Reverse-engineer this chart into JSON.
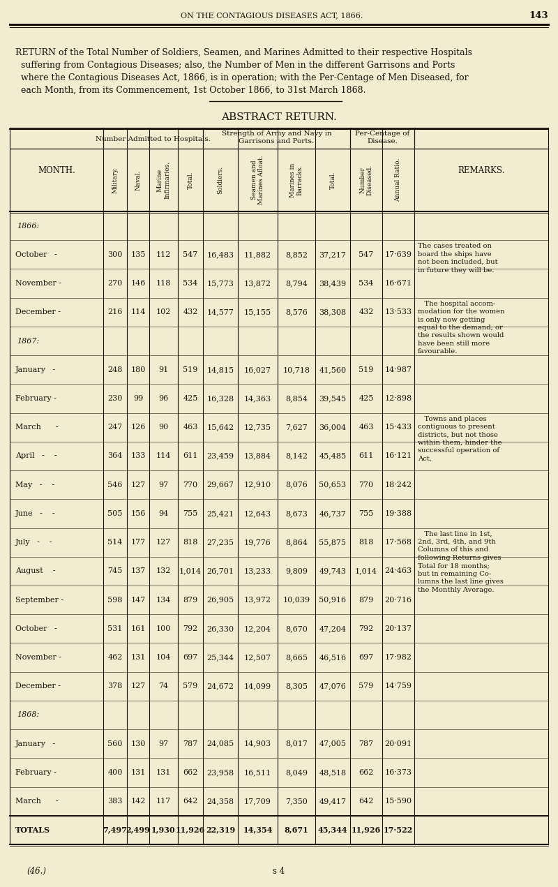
{
  "page_header": "ON THE CONTAGIOUS DISEASES ACT, 1866.",
  "page_number": "143",
  "intro_lines": [
    [
      "RETURN",
      " of the Total Number of ",
      "Soldiers",
      ", ",
      "Seamen",
      ", and ",
      "Marines",
      " Admitted to their respective ",
      "Hospitals"
    ],
    [
      "  suffering from ",
      "Contagious Diseases",
      "; also, the Number of ",
      "Men",
      " in the different ",
      "Garrisons",
      " and ",
      "Ports"
    ],
    [
      "  where the ",
      "Contagious Diseases Act",
      ", 1866, is in operation; with the Per-Centage of Men Diseased, for"
    ],
    [
      "  each Month, from its Commencement, 1st October 1866, to 31st March 1868."
    ]
  ],
  "intro_text_plain": [
    "RETURN of the Total Number of Soldiers, Seamen, and Marines Admitted to their respective Hospitals",
    "  suffering from Contagious Diseases; also, the Number of Men in the different Garrisons and Ports",
    "  where the Contagious Diseases Act, 1866, is in operation; with the Per-Centage of Men Diseased, for",
    "  each Month, from its Commencement, 1st October 1866, to 31st March 1868."
  ],
  "section_title": "ABSTRACT RETURN.",
  "col_group1_header": "Number Admitted to Hospitals.",
  "col_group2_header": "Strength of Army and Navy in\nGarrisons and Ports.",
  "col_group3_header": "Per-Centage of\nDisease.",
  "col_headers_rot": [
    "Military.",
    "Naval.",
    "Marine\nInfirmaries.",
    "Total.",
    "Soldiers.",
    "Seamen and\nMarines Afloat.",
    "Marines in\nBarracks.",
    "Total.",
    "Number\nDiseased.",
    "Annual Ratio."
  ],
  "month_col_header": "MONTH.",
  "remarks_col_header": "REMARKS.",
  "rows": [
    {
      "year_label": "1866:",
      "month": "",
      "mil": "",
      "nav": "",
      "mar": "",
      "tot": "",
      "sol": "",
      "sea": "",
      "bar": "",
      "ttl": "",
      "ndis": "",
      "ratio": ""
    },
    {
      "year_label": "",
      "month": "October   -",
      "mil": "300",
      "nav": "135",
      "mar": "112",
      "tot": "547",
      "sol": "16,483",
      "sea": "11,882",
      "bar": "8,852",
      "ttl": "37,217",
      "ndis": "547",
      "ratio": "17·639"
    },
    {
      "year_label": "",
      "month": "November -",
      "mil": "270",
      "nav": "146",
      "mar": "118",
      "tot": "534",
      "sol": "15,773",
      "sea": "13,872",
      "bar": "8,794",
      "ttl": "38,439",
      "ndis": "534",
      "ratio": "16·671"
    },
    {
      "year_label": "",
      "month": "December -",
      "mil": "216",
      "nav": "114",
      "mar": "102",
      "tot": "432",
      "sol": "14,577",
      "sea": "15,155",
      "bar": "8,576",
      "ttl": "38,308",
      "ndis": "432",
      "ratio": "13·533"
    },
    {
      "year_label": "1867:",
      "month": "",
      "mil": "",
      "nav": "",
      "mar": "",
      "tot": "",
      "sol": "",
      "sea": "",
      "bar": "",
      "ttl": "",
      "ndis": "",
      "ratio": ""
    },
    {
      "year_label": "",
      "month": "January   -",
      "mil": "248",
      "nav": "180",
      "mar": "91",
      "tot": "519",
      "sol": "14,815",
      "sea": "16,027",
      "bar": "10,718",
      "ttl": "41,560",
      "ndis": "519",
      "ratio": "14·987"
    },
    {
      "year_label": "",
      "month": "February -",
      "mil": "230",
      "nav": "99",
      "mar": "96",
      "tot": "425",
      "sol": "16,328",
      "sea": "14,363",
      "bar": "8,854",
      "ttl": "39,545",
      "ndis": "425",
      "ratio": "12·898"
    },
    {
      "year_label": "",
      "month": "March      -",
      "mil": "247",
      "nav": "126",
      "mar": "90",
      "tot": "463",
      "sol": "15,642",
      "sea": "12,735",
      "bar": "7,627",
      "ttl": "36,004",
      "ndis": "463",
      "ratio": "15·433"
    },
    {
      "year_label": "",
      "month": "April   -    -",
      "mil": "364",
      "nav": "133",
      "mar": "114",
      "tot": "611",
      "sol": "23,459",
      "sea": "13,884",
      "bar": "8,142",
      "ttl": "45,485",
      "ndis": "611",
      "ratio": "16·121"
    },
    {
      "year_label": "",
      "month": "May   -    -",
      "mil": "546",
      "nav": "127",
      "mar": "97",
      "tot": "770",
      "sol": "29,667",
      "sea": "12,910",
      "bar": "8,076",
      "ttl": "50,653",
      "ndis": "770",
      "ratio": "18·242"
    },
    {
      "year_label": "",
      "month": "June   -    -",
      "mil": "505",
      "nav": "156",
      "mar": "94",
      "tot": "755",
      "sol": "25,421",
      "sea": "12,643",
      "bar": "8,673",
      "ttl": "46,737",
      "ndis": "755",
      "ratio": "19·388"
    },
    {
      "year_label": "",
      "month": "July   -    -",
      "mil": "514",
      "nav": "177",
      "mar": "127",
      "tot": "818",
      "sol": "27,235",
      "sea": "19,776",
      "bar": "8,864",
      "ttl": "55,875",
      "ndis": "818",
      "ratio": "17·568"
    },
    {
      "year_label": "",
      "month": "August    -",
      "mil": "745",
      "nav": "137",
      "mar": "132",
      "tot": "1,014",
      "sol": "26,701",
      "sea": "13,233",
      "bar": "9,809",
      "ttl": "49,743",
      "ndis": "1,014",
      "ratio": "24·463"
    },
    {
      "year_label": "",
      "month": "September -",
      "mil": "598",
      "nav": "147",
      "mar": "134",
      "tot": "879",
      "sol": "26,905",
      "sea": "13,972",
      "bar": "10,039",
      "ttl": "50,916",
      "ndis": "879",
      "ratio": "20·716"
    },
    {
      "year_label": "",
      "month": "October   -",
      "mil": "531",
      "nav": "161",
      "mar": "100",
      "tot": "792",
      "sol": "26,330",
      "sea": "12,204",
      "bar": "8,670",
      "ttl": "47,204",
      "ndis": "792",
      "ratio": "20·137"
    },
    {
      "year_label": "",
      "month": "November -",
      "mil": "462",
      "nav": "131",
      "mar": "104",
      "tot": "697",
      "sol": "25,344",
      "sea": "12,507",
      "bar": "8,665",
      "ttl": "46,516",
      "ndis": "697",
      "ratio": "17·982"
    },
    {
      "year_label": "",
      "month": "December -",
      "mil": "378",
      "nav": "127",
      "mar": "74",
      "tot": "579",
      "sol": "24,672",
      "sea": "14,099",
      "bar": "8,305",
      "ttl": "47,076",
      "ndis": "579",
      "ratio": "14·759"
    },
    {
      "year_label": "1868:",
      "month": "",
      "mil": "",
      "nav": "",
      "mar": "",
      "tot": "",
      "sol": "",
      "sea": "",
      "bar": "",
      "ttl": "",
      "ndis": "",
      "ratio": ""
    },
    {
      "year_label": "",
      "month": "January   -",
      "mil": "560",
      "nav": "130",
      "mar": "97",
      "tot": "787",
      "sol": "24,085",
      "sea": "14,903",
      "bar": "8,017",
      "ttl": "47,005",
      "ndis": "787",
      "ratio": "20·091"
    },
    {
      "year_label": "",
      "month": "February -",
      "mil": "400",
      "nav": "131",
      "mar": "131",
      "tot": "662",
      "sol": "23,958",
      "sea": "16,511",
      "bar": "8,049",
      "ttl": "48,518",
      "ndis": "662",
      "ratio": "16·373"
    },
    {
      "year_label": "",
      "month": "March      -",
      "mil": "383",
      "nav": "142",
      "mar": "117",
      "tot": "642",
      "sol": "24,358",
      "sea": "17,709",
      "bar": "7,350",
      "ttl": "49,417",
      "ndis": "642",
      "ratio": "15·590"
    },
    {
      "year_label": "",
      "month": "TOTALS",
      "mil": "7,497",
      "nav": "2,499",
      "mar": "1,930",
      "tot": "11,926",
      "sol": "22,319",
      "sea": "14,354",
      "bar": "8,671",
      "ttl": "45,344",
      "ndis": "11,926",
      "ratio": "17·522"
    }
  ],
  "remarks": {
    "1": "The cases treated on\nboard the ships have\nnot been included, but\nin future they will be.",
    "3": "   The hospital accom-\nmodation for the women\nis only now getting\nequal to the demand, or\nthe results shown would\nhave been still more\nfavourable.",
    "7": "   Towns and places\ncontiguous to present\ndistricts, but not those\nwithin them, hinder the\nsuccessful operation of\nAct.",
    "11": "   The last line in 1st,\n2nd, 3rd, 4th, and 9th\nColumns of this and\nfollowing Returns gives\nTotal for 18 months;\nbut in remaining Co-\nlumns the last line gives\nthe Monthly Average."
  },
  "footer_left": "(46.)",
  "footer_right": "s 4",
  "bg_color": "#f2ecd0",
  "text_color": "#1a1008",
  "line_color": "#1a1008"
}
